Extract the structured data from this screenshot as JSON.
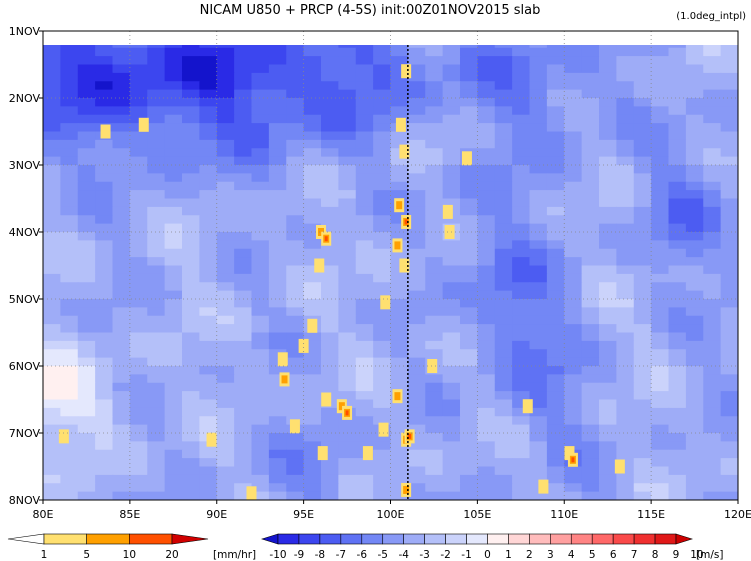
{
  "chart_data": {
    "type": "heatmap",
    "title": "NICAM  U850 + PRCP (4-5S) init:00Z01NOV2015 slab",
    "note": "(1.0deg_intpl)",
    "x_ticks": [
      "80E",
      "85E",
      "90E",
      "95E",
      "100E",
      "105E",
      "110E",
      "115E",
      "120E"
    ],
    "x_tick_values": [
      80,
      85,
      90,
      95,
      100,
      105,
      110,
      115,
      120
    ],
    "xlim": [
      80,
      120
    ],
    "y_ticks": [
      "1NOV",
      "2NOV",
      "3NOV",
      "4NOV",
      "5NOV",
      "6NOV",
      "7NOV",
      "8NOV"
    ],
    "y_tick_values": [
      1,
      2,
      3,
      4,
      5,
      6,
      7,
      8
    ],
    "ylim": [
      1,
      8
    ],
    "y_reversed": true,
    "grid": true,
    "reference_line_lon": 101,
    "wind": {
      "variable": "U850",
      "unit": "[m/s]",
      "levels": [
        "-10",
        "-9",
        "-8",
        "-7",
        "-6",
        "-5",
        "-4",
        "-3",
        "-2",
        "-1",
        "0",
        "1",
        "2",
        "3",
        "4",
        "5",
        "6",
        "7",
        "8",
        "9",
        "10"
      ],
      "colors": [
        "#1414cc",
        "#2a2ae6",
        "#3c46ef",
        "#4c5cf2",
        "#5f72f4",
        "#7387f5",
        "#8899f6",
        "#9eacf7",
        "#b4c0f9",
        "#cbd3fb",
        "#e4e8fd",
        "#fff0f0",
        "#ffd6d6",
        "#ffbcbc",
        "#ffa0a0",
        "#ff8484",
        "#ff6868",
        "#fa4a4a",
        "#f03030",
        "#e01818",
        "#cc0000"
      ]
    },
    "precip": {
      "variable": "PRCP",
      "unit": "[mm/hr]",
      "levels": [
        "1",
        "5",
        "10",
        "20"
      ],
      "colors": [
        "#ffffff",
        "#ffe070",
        "#ffa000",
        "#ff5000",
        "#d00000"
      ]
    }
  }
}
